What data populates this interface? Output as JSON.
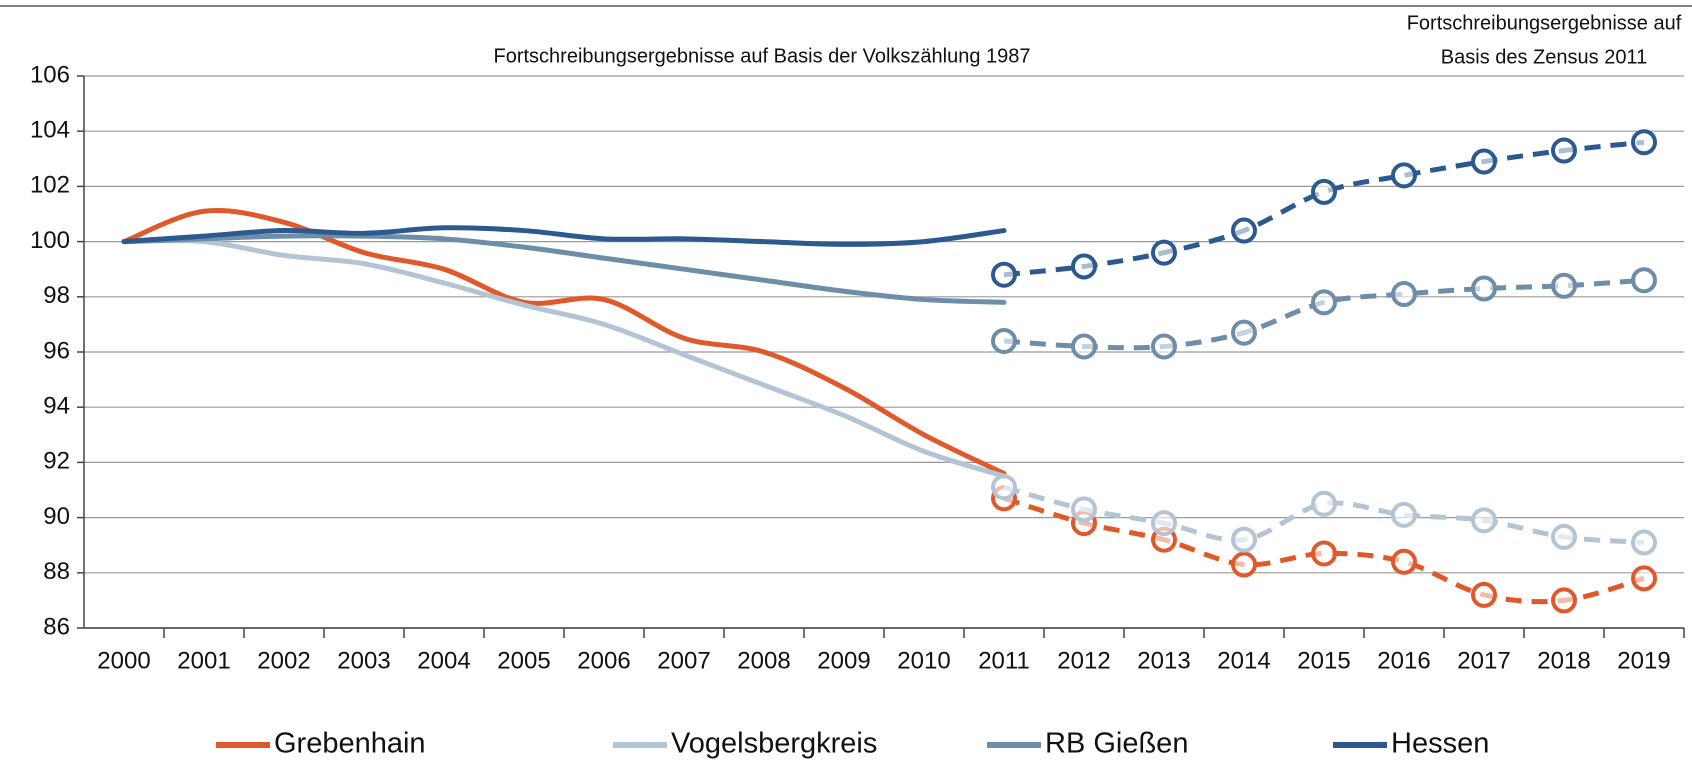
{
  "chart_data": {
    "type": "line",
    "annotation_left": "Fortschreibungsergebnisse auf Basis der Volkszählung 1987",
    "annotation_right": [
      "Fortschreibungsergebnisse auf",
      "Basis des Zensus 2011"
    ],
    "categories": [
      "2000",
      "2001",
      "2002",
      "2003",
      "2004",
      "2005",
      "2006",
      "2007",
      "2008",
      "2009",
      "2010",
      "2011",
      "2012",
      "2013",
      "2014",
      "2015",
      "2016",
      "2017",
      "2018",
      "2019"
    ],
    "ylim": [
      86,
      106
    ],
    "yticks": [
      86,
      88,
      90,
      92,
      94,
      96,
      98,
      100,
      102,
      104,
      106
    ],
    "grid": true,
    "series": [
      {
        "name": "Grebenhain",
        "color": "#e0592a",
        "values": [
          100,
          101.1,
          100.7,
          99.6,
          99.0,
          97.8,
          97.9,
          96.5,
          96.0,
          94.7,
          93.0,
          91.6,
          null,
          null,
          null,
          null,
          null,
          null,
          null,
          null
        ],
        "values_census": [
          null,
          null,
          null,
          null,
          null,
          null,
          null,
          null,
          null,
          null,
          null,
          90.7,
          89.8,
          89.2,
          88.3,
          88.7,
          88.4,
          87.2,
          87.0,
          87.8
        ]
      },
      {
        "name": "Vogelsbergkreis",
        "color": "#b3c5d5",
        "values": [
          100,
          100.0,
          99.5,
          99.2,
          98.5,
          97.7,
          97.0,
          95.9,
          94.8,
          93.7,
          92.4,
          91.5,
          null,
          null,
          null,
          null,
          null,
          null,
          null,
          null
        ],
        "values_census": [
          null,
          null,
          null,
          null,
          null,
          null,
          null,
          null,
          null,
          null,
          null,
          91.1,
          90.3,
          89.8,
          89.2,
          90.5,
          90.1,
          89.9,
          89.3,
          89.1
        ]
      },
      {
        "name": "RB Gießen",
        "color": "#6e8da8",
        "values": [
          100,
          100.1,
          100.2,
          100.2,
          100.1,
          99.8,
          99.4,
          99.0,
          98.6,
          98.2,
          97.9,
          97.8,
          null,
          null,
          null,
          null,
          null,
          null,
          null,
          null
        ],
        "values_census": [
          null,
          null,
          null,
          null,
          null,
          null,
          null,
          null,
          null,
          null,
          null,
          96.4,
          96.2,
          96.2,
          96.7,
          97.8,
          98.1,
          98.3,
          98.4,
          98.6
        ]
      },
      {
        "name": "Hessen",
        "color": "#2c5a90",
        "values": [
          100,
          100.2,
          100.4,
          100.3,
          100.5,
          100.4,
          100.1,
          100.1,
          100.0,
          99.9,
          100.0,
          100.4,
          null,
          null,
          null,
          null,
          null,
          null,
          null,
          null
        ],
        "values_census": [
          null,
          null,
          null,
          null,
          null,
          null,
          null,
          null,
          null,
          null,
          null,
          98.8,
          99.1,
          99.6,
          100.4,
          101.8,
          102.4,
          102.9,
          103.3,
          103.6
        ]
      }
    ]
  }
}
